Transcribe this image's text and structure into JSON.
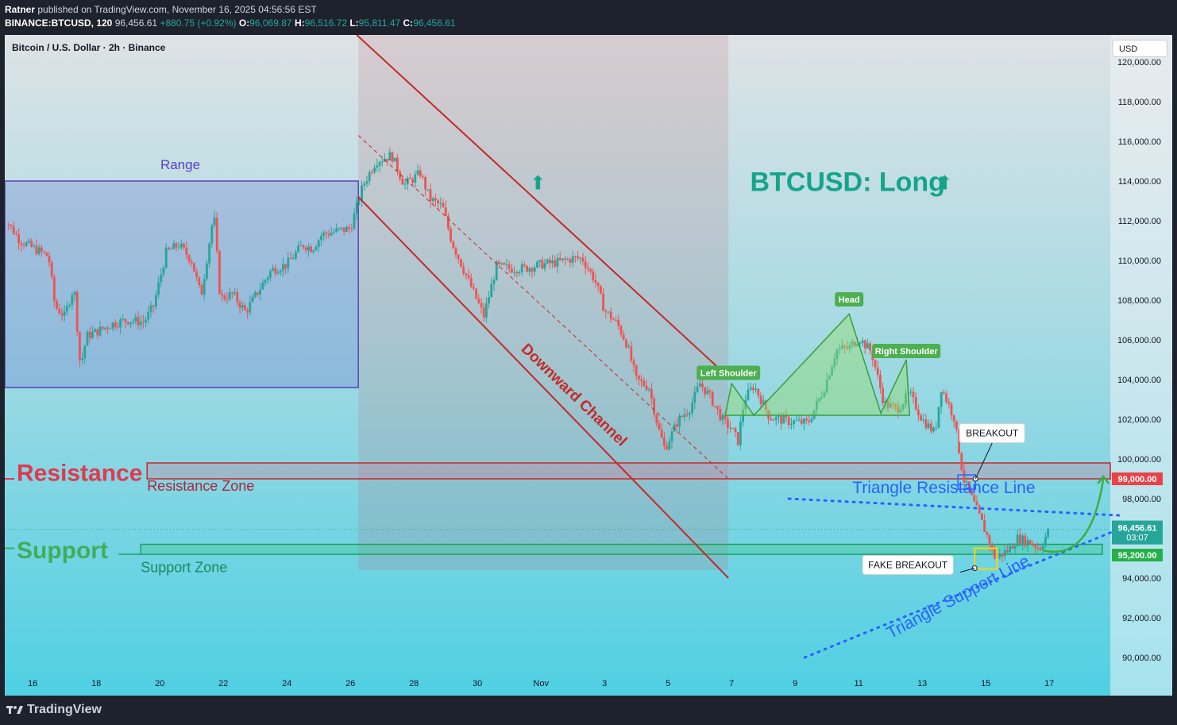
{
  "header": {
    "author": "Ratner",
    "published": "published on TradingView.com, November 16, 2025 04:56:56 EST",
    "symbol": "BINANCE:BTCUSD, 120",
    "last": "96,456.61",
    "change": "+880.75 (+0.92%)",
    "o_label": "O:",
    "o": "96,069.87",
    "h_label": "H:",
    "h": "96,516.72",
    "l_label": "L:",
    "l": "95,811.47",
    "c_label": "C:",
    "c": "96,456.61"
  },
  "chart_title": "Bitcoin / U.S. Dollar · 2h · Binance",
  "currency_button": "USD",
  "footer": {
    "brand": "TradingView"
  },
  "colors": {
    "up": "#26a69a",
    "down": "#ef5350",
    "resistance": "#e03a4e",
    "support": "#3fae5a",
    "range": "#5a3fc0",
    "channel": "#c62828",
    "triangle": "#2962ff",
    "pattern": "#4caf50"
  },
  "chart_data": {
    "type": "candlestick",
    "ylim": [
      89000,
      121500
    ],
    "y_ticks": [
      {
        "v": 120000,
        "t": "120,000.00"
      },
      {
        "v": 118000,
        "t": "118,000.00"
      },
      {
        "v": 116000,
        "t": "116,000.00"
      },
      {
        "v": 114000,
        "t": "114,000.00"
      },
      {
        "v": 112000,
        "t": "112,000.00"
      },
      {
        "v": 110000,
        "t": "110,000.00"
      },
      {
        "v": 108000,
        "t": "108,000.00"
      },
      {
        "v": 106000,
        "t": "106,000.00"
      },
      {
        "v": 104000,
        "t": "104,000.00"
      },
      {
        "v": 102000,
        "t": "102,000.00"
      },
      {
        "v": 100000,
        "t": "100,000.00"
      },
      {
        "v": 98000,
        "t": "98,000.00"
      },
      {
        "v": 94000,
        "t": "94,000.00"
      },
      {
        "v": 92000,
        "t": "92,000.00"
      },
      {
        "v": 90000,
        "t": "90,000.00"
      }
    ],
    "x_ticks": [
      {
        "d": 16,
        "t": "16"
      },
      {
        "d": 18,
        "t": "18"
      },
      {
        "d": 20,
        "t": "20"
      },
      {
        "d": 22,
        "t": "22"
      },
      {
        "d": 24,
        "t": "24"
      },
      {
        "d": 26,
        "t": "26"
      },
      {
        "d": 28,
        "t": "28"
      },
      {
        "d": 30,
        "t": "30"
      },
      {
        "d": 32,
        "t": "Nov"
      },
      {
        "d": 34,
        "t": "3"
      },
      {
        "d": 36,
        "t": "5"
      },
      {
        "d": 38,
        "t": "7"
      },
      {
        "d": 40,
        "t": "9"
      },
      {
        "d": 42,
        "t": "11"
      },
      {
        "d": 44,
        "t": "13"
      },
      {
        "d": 46,
        "t": "15"
      },
      {
        "d": 48,
        "t": "17"
      }
    ],
    "price_path": [
      [
        15.0,
        112400
      ],
      [
        15.6,
        111000
      ],
      [
        16.5,
        110200
      ],
      [
        16.7,
        107700
      ],
      [
        17.0,
        107200
      ],
      [
        17.3,
        108700
      ],
      [
        17.5,
        104600
      ],
      [
        17.7,
        106200
      ],
      [
        18.0,
        106400
      ],
      [
        18.5,
        106800
      ],
      [
        19.0,
        107000
      ],
      [
        19.5,
        106900
      ],
      [
        19.8,
        107700
      ],
      [
        20.2,
        110400
      ],
      [
        20.6,
        110800
      ],
      [
        21.0,
        110000
      ],
      [
        21.3,
        108200
      ],
      [
        21.7,
        112400
      ],
      [
        21.9,
        108100
      ],
      [
        22.3,
        108300
      ],
      [
        22.7,
        107400
      ],
      [
        23.0,
        108200
      ],
      [
        23.5,
        109500
      ],
      [
        24.0,
        109800
      ],
      [
        24.5,
        110800
      ],
      [
        24.8,
        110600
      ],
      [
        25.1,
        111300
      ],
      [
        25.6,
        111500
      ],
      [
        26.0,
        111600
      ],
      [
        26.4,
        113800
      ],
      [
        26.8,
        115000
      ],
      [
        27.3,
        115300
      ],
      [
        27.7,
        113800
      ],
      [
        28.2,
        114400
      ],
      [
        28.5,
        113100
      ],
      [
        28.9,
        112700
      ],
      [
        29.2,
        110900
      ],
      [
        29.6,
        109400
      ],
      [
        29.9,
        108300
      ],
      [
        30.2,
        107200
      ],
      [
        30.6,
        109700
      ],
      [
        31.0,
        109600
      ],
      [
        31.5,
        109600
      ],
      [
        32.0,
        109800
      ],
      [
        32.5,
        109900
      ],
      [
        33.0,
        110100
      ],
      [
        33.3,
        110100
      ],
      [
        33.7,
        109000
      ],
      [
        34.0,
        107500
      ],
      [
        34.4,
        106800
      ],
      [
        34.7,
        105800
      ],
      [
        35.0,
        104000
      ],
      [
        35.4,
        103600
      ],
      [
        35.7,
        101500
      ],
      [
        35.9,
        100500
      ],
      [
        36.3,
        101900
      ],
      [
        36.7,
        102600
      ],
      [
        37.0,
        103800
      ],
      [
        37.3,
        103200
      ],
      [
        37.7,
        102000
      ],
      [
        38.0,
        101500
      ],
      [
        38.2,
        100900
      ],
      [
        38.4,
        103000
      ],
      [
        38.7,
        103700
      ],
      [
        39.2,
        102100
      ],
      [
        39.8,
        101900
      ],
      [
        40.4,
        101800
      ],
      [
        40.9,
        103500
      ],
      [
        41.3,
        105500
      ],
      [
        41.7,
        105600
      ],
      [
        42.0,
        106100
      ],
      [
        42.4,
        105400
      ],
      [
        42.8,
        102800
      ],
      [
        43.2,
        102500
      ],
      [
        43.6,
        103300
      ],
      [
        44.0,
        102000
      ],
      [
        44.4,
        101300
      ],
      [
        44.6,
        103600
      ],
      [
        45.0,
        102100
      ],
      [
        45.3,
        99000
      ],
      [
        45.7,
        97500
      ],
      [
        46.0,
        96300
      ],
      [
        46.3,
        95000
      ],
      [
        46.7,
        95400
      ],
      [
        47.0,
        96000
      ],
      [
        47.4,
        95800
      ],
      [
        47.7,
        95500
      ],
      [
        48.0,
        96456
      ]
    ],
    "last_price": 96456.61,
    "last_price_label": "96,456.61",
    "countdown": "03:07",
    "resistance_level": 99000,
    "resistance_label": "99,000.00",
    "support_level": 95200,
    "support_label": "95,200.00"
  },
  "annotations": {
    "main_title": "BTCUSD: Long",
    "range": "Range",
    "downward_channel": "Downward Channel",
    "resistance": "Resistance",
    "resistance_zone": "Resistance Zone",
    "support": "Support",
    "support_zone": "Support Zone",
    "left_shoulder": "Left Shoulder",
    "head": "Head",
    "right_shoulder": "Right Shoulder",
    "breakout": "BREAKOUT",
    "fake_breakout": "FAKE BREAKOUT",
    "triangle_resistance": "Triangle Resistance Line",
    "triangle_support": "Triangle Support Line"
  }
}
